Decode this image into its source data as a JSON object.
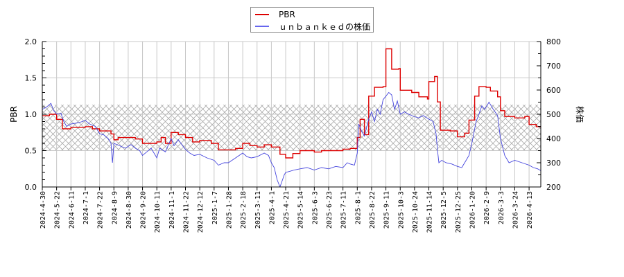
{
  "chart_data": {
    "type": "line",
    "title": "",
    "legend": {
      "position": "top-center",
      "entries": [
        {
          "label": "PBR",
          "color": "#dd0000"
        },
        {
          "label": "ｕｎｂａｎｋｅｄの株価",
          "color": "#4444dd"
        }
      ]
    },
    "xlabel": "",
    "ylabel_left": "PBR",
    "ylabel_right": "株価",
    "ylim_left": [
      0.0,
      2.0
    ],
    "ylim_right": [
      200,
      800
    ],
    "yticks_left": [
      "0.0",
      "0.5",
      "1.0",
      "1.5",
      "2.0"
    ],
    "yticks_right": [
      "200",
      "300",
      "400",
      "500",
      "600",
      "700",
      "800"
    ],
    "grid": true,
    "hatched_band_pbr": [
      0.5,
      1.13
    ],
    "x_tick_labels": [
      "2024-4-30",
      "2024-5-22",
      "2024-6-11",
      "2024-7-1",
      "2024-7-22",
      "2024-8-9",
      "2024-8-30",
      "2024-9-20",
      "2024-10-11",
      "2024-11-1",
      "2024-11-22",
      "2024-12-12",
      "2025-1-7",
      "2025-1-28",
      "2025-2-18",
      "2025-3-11",
      "2025-4-1",
      "2025-4-21",
      "2025-5-14",
      "2025-6-3",
      "2025-6-23",
      "2025-7-11",
      "2025-8-1",
      "2025-8-22",
      "2025-9-11",
      "2025-10-3",
      "2025-10-24",
      "2025-11-14",
      "2025-12-5",
      "2025-12-25",
      "2026-1-20",
      "2026-2-9",
      "2026-3-3",
      "2026-3-24",
      "2026-4-13"
    ],
    "series": [
      {
        "name": "PBR",
        "axis": "left",
        "color": "#dd0000",
        "points_by_tick": [
          [
            0,
            0.98
          ],
          [
            0.5,
            1.0
          ],
          [
            1,
            0.93
          ],
          [
            1.4,
            0.8
          ],
          [
            2,
            0.82
          ],
          [
            3,
            0.83
          ],
          [
            3.5,
            0.8
          ],
          [
            4,
            0.77
          ],
          [
            4.8,
            0.73
          ],
          [
            5,
            0.65
          ],
          [
            5.3,
            0.68
          ],
          [
            6.5,
            0.66
          ],
          [
            7,
            0.6
          ],
          [
            8,
            0.62
          ],
          [
            8.3,
            0.68
          ],
          [
            8.6,
            0.6
          ],
          [
            9,
            0.75
          ],
          [
            9.5,
            0.72
          ],
          [
            10,
            0.68
          ],
          [
            10.5,
            0.62
          ],
          [
            11,
            0.64
          ],
          [
            11.8,
            0.6
          ],
          [
            12.3,
            0.51
          ],
          [
            13.5,
            0.53
          ],
          [
            14,
            0.6
          ],
          [
            14.5,
            0.57
          ],
          [
            15,
            0.55
          ],
          [
            15.5,
            0.58
          ],
          [
            16,
            0.55
          ],
          [
            16.6,
            0.45
          ],
          [
            17,
            0.4
          ],
          [
            17.5,
            0.46
          ],
          [
            18,
            0.5
          ],
          [
            19,
            0.48
          ],
          [
            19.5,
            0.5
          ],
          [
            21,
            0.52
          ],
          [
            21.5,
            0.53
          ],
          [
            22,
            0.68
          ],
          [
            22.2,
            0.93
          ],
          [
            22.5,
            0.72
          ],
          [
            22.8,
            1.25
          ],
          [
            23.2,
            1.37
          ],
          [
            23.8,
            1.38
          ],
          [
            24,
            1.9
          ],
          [
            24.4,
            1.62
          ],
          [
            24.9,
            1.63
          ],
          [
            25,
            1.33
          ],
          [
            25.8,
            1.3
          ],
          [
            26.3,
            1.24
          ],
          [
            26.9,
            1.21
          ],
          [
            27,
            1.45
          ],
          [
            27.4,
            1.52
          ],
          [
            27.6,
            1.17
          ],
          [
            27.8,
            0.78
          ],
          [
            28.5,
            0.77
          ],
          [
            29,
            0.69
          ],
          [
            29.5,
            0.74
          ],
          [
            29.8,
            0.92
          ],
          [
            30.2,
            1.25
          ],
          [
            30.5,
            1.38
          ],
          [
            31,
            1.37
          ],
          [
            31.3,
            1.32
          ],
          [
            31.8,
            1.24
          ],
          [
            32,
            1.05
          ],
          [
            32.3,
            0.97
          ],
          [
            33,
            0.95
          ],
          [
            33.7,
            0.97
          ],
          [
            34,
            0.86
          ],
          [
            34.5,
            0.83
          ],
          [
            34.9,
            0.83
          ]
        ]
      },
      {
        "name": "ｕｎｂａｎｋｅｄの株価",
        "axis": "right",
        "color": "#4444dd",
        "points_by_tick": [
          [
            0,
            520
          ],
          [
            0.3,
            530
          ],
          [
            0.6,
            545
          ],
          [
            0.8,
            515
          ],
          [
            1,
            500
          ],
          [
            1.3,
            505
          ],
          [
            1.5,
            470
          ],
          [
            1.7,
            450
          ],
          [
            2,
            460
          ],
          [
            2.5,
            465
          ],
          [
            2.8,
            470
          ],
          [
            3,
            475
          ],
          [
            3.3,
            460
          ],
          [
            3.7,
            450
          ],
          [
            4,
            420
          ],
          [
            4.3,
            415
          ],
          [
            4.6,
            400
          ],
          [
            4.8,
            380
          ],
          [
            4.9,
            300
          ],
          [
            5,
            380
          ],
          [
            5.4,
            370
          ],
          [
            5.8,
            360
          ],
          [
            6.2,
            375
          ],
          [
            6.5,
            360
          ],
          [
            6.8,
            350
          ],
          [
            7,
            330
          ],
          [
            7.3,
            345
          ],
          [
            7.6,
            360
          ],
          [
            7.8,
            340
          ],
          [
            8,
            320
          ],
          [
            8.2,
            360
          ],
          [
            8.6,
            345
          ],
          [
            9,
            400
          ],
          [
            9.2,
            370
          ],
          [
            9.5,
            395
          ],
          [
            9.8,
            370
          ],
          [
            10,
            355
          ],
          [
            10.3,
            340
          ],
          [
            10.6,
            330
          ],
          [
            11,
            335
          ],
          [
            11.5,
            320
          ],
          [
            12,
            310
          ],
          [
            12.3,
            290
          ],
          [
            12.7,
            300
          ],
          [
            13,
            300
          ],
          [
            13.5,
            320
          ],
          [
            14,
            340
          ],
          [
            14.3,
            325
          ],
          [
            14.6,
            320
          ],
          [
            15,
            325
          ],
          [
            15.5,
            340
          ],
          [
            15.8,
            330
          ],
          [
            16,
            300
          ],
          [
            16.2,
            280
          ],
          [
            16.4,
            230
          ],
          [
            16.6,
            200
          ],
          [
            16.9,
            250
          ],
          [
            17,
            260
          ],
          [
            17.3,
            265
          ],
          [
            17.6,
            270
          ],
          [
            18,
            275
          ],
          [
            18.5,
            280
          ],
          [
            19,
            270
          ],
          [
            19.5,
            280
          ],
          [
            20,
            275
          ],
          [
            20.5,
            285
          ],
          [
            21,
            280
          ],
          [
            21.3,
            300
          ],
          [
            21.5,
            295
          ],
          [
            21.8,
            290
          ],
          [
            22,
            340
          ],
          [
            22.1,
            460
          ],
          [
            22.3,
            430
          ],
          [
            22.5,
            410
          ],
          [
            22.8,
            480
          ],
          [
            23,
            510
          ],
          [
            23.2,
            470
          ],
          [
            23.4,
            520
          ],
          [
            23.6,
            500
          ],
          [
            23.8,
            560
          ],
          [
            24,
            575
          ],
          [
            24.2,
            590
          ],
          [
            24.4,
            580
          ],
          [
            24.6,
            520
          ],
          [
            24.8,
            555
          ],
          [
            25,
            500
          ],
          [
            25.3,
            510
          ],
          [
            25.6,
            500
          ],
          [
            26,
            490
          ],
          [
            26.3,
            485
          ],
          [
            26.6,
            495
          ],
          [
            27,
            480
          ],
          [
            27.3,
            470
          ],
          [
            27.5,
            420
          ],
          [
            27.6,
            355
          ],
          [
            27.7,
            300
          ],
          [
            27.9,
            310
          ],
          [
            28.2,
            300
          ],
          [
            28.6,
            295
          ],
          [
            29,
            285
          ],
          [
            29.3,
            280
          ],
          [
            29.5,
            300
          ],
          [
            29.8,
            330
          ],
          [
            30,
            380
          ],
          [
            30.3,
            470
          ],
          [
            30.5,
            500
          ],
          [
            30.7,
            535
          ],
          [
            30.9,
            520
          ],
          [
            31.2,
            550
          ],
          [
            31.5,
            520
          ],
          [
            31.8,
            495
          ],
          [
            32,
            400
          ],
          [
            32.3,
            330
          ],
          [
            32.6,
            300
          ],
          [
            33,
            310
          ],
          [
            33.5,
            300
          ],
          [
            34,
            290
          ],
          [
            34.3,
            280
          ],
          [
            34.6,
            275
          ],
          [
            34.9,
            265
          ]
        ]
      }
    ]
  }
}
